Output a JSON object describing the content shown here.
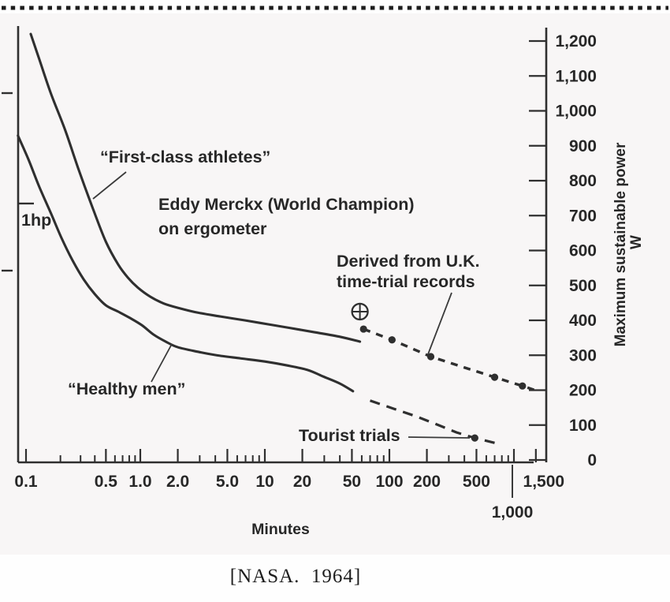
{
  "page": {
    "caption": "[NASA.  1964]"
  },
  "figure": {
    "x_axis_title": "Minutes",
    "y_axis_title": "Maximum sustainable power",
    "y_axis_unit": "W",
    "labels": {
      "first_class": "“First-class athletes”",
      "merckx_1": "Eddy Merckx (World Champion)",
      "merckx_2": "on ergometer",
      "one_hp": "1hp",
      "derived_1": "Derived from U.K.",
      "derived_2": "time-trial records",
      "healthy": "“Healthy men”",
      "tourist": "Tourist trials",
      "x_overflow_label": "1,000"
    }
  },
  "chart_data": {
    "type": "line",
    "title": "",
    "xlabel": "Minutes",
    "ylabel": "Maximum sustainable power (W)",
    "x_scale": "log",
    "xlim": [
      0.08,
      1700
    ],
    "ylim": [
      0,
      1250
    ],
    "grid": false,
    "legend": "none",
    "ink_color": "#2f2f2f",
    "x_major_ticks": [
      {
        "v": 0.1,
        "label": "0.1"
      },
      {
        "v": 0.5,
        "label": "0.5"
      },
      {
        "v": 1,
        "label": "1.0"
      },
      {
        "v": 2,
        "label": "2.0"
      },
      {
        "v": 5,
        "label": "5.0"
      },
      {
        "v": 10,
        "label": "10"
      },
      {
        "v": 20,
        "label": "20"
      },
      {
        "v": 50,
        "label": "50"
      },
      {
        "v": 100,
        "label": "100"
      },
      {
        "v": 200,
        "label": "200"
      },
      {
        "v": 500,
        "label": "500"
      },
      {
        "v": 1000,
        "label": ""
      },
      {
        "v": 1500,
        "label": "1,500",
        "dx": 10
      }
    ],
    "x_minor_ticks": [
      0.2,
      0.3,
      0.4,
      0.6,
      0.7,
      0.8,
      0.9,
      3,
      4,
      6,
      7,
      8,
      9,
      30,
      40,
      60,
      70,
      80,
      90,
      300,
      400,
      600,
      700,
      800,
      900
    ],
    "y_ticks": [
      {
        "v": 0,
        "label": "0"
      },
      {
        "v": 100,
        "label": "100"
      },
      {
        "v": 200,
        "label": "200"
      },
      {
        "v": 300,
        "label": "300"
      },
      {
        "v": 400,
        "label": "400"
      },
      {
        "v": 500,
        "label": "500"
      },
      {
        "v": 600,
        "label": "600"
      },
      {
        "v": 700,
        "label": "700"
      },
      {
        "v": 800,
        "label": "800"
      },
      {
        "v": 900,
        "label": "900"
      },
      {
        "v": 1000,
        "label": "1,000"
      },
      {
        "v": 1100,
        "label": "1,100"
      },
      {
        "v": 1200,
        "label": "1,200"
      }
    ],
    "reference_marks": [
      {
        "label": "1hp",
        "watts": 746
      }
    ],
    "series": [
      {
        "name": "“First-class athletes”",
        "style": "solid",
        "points": [
          [
            0.11,
            1220
          ],
          [
            0.13,
            1150
          ],
          [
            0.165,
            1050
          ],
          [
            0.22,
            945
          ],
          [
            0.29,
            830
          ],
          [
            0.39,
            715
          ],
          [
            0.5,
            625
          ],
          [
            0.64,
            560
          ],
          [
            0.78,
            522
          ],
          [
            0.95,
            494
          ],
          [
            1.2,
            468
          ],
          [
            1.55,
            448
          ],
          [
            2.1,
            434
          ],
          [
            2.9,
            422
          ],
          [
            4.4,
            411
          ],
          [
            6.9,
            400
          ],
          [
            10.5,
            389
          ],
          [
            16,
            378
          ],
          [
            25,
            366
          ],
          [
            40,
            353
          ],
          [
            58,
            339
          ]
        ]
      },
      {
        "name": "“Healthy men”",
        "style": "solid",
        "points": [
          [
            0.085,
            929
          ],
          [
            0.105,
            861
          ],
          [
            0.13,
            784
          ],
          [
            0.165,
            707
          ],
          [
            0.205,
            635
          ],
          [
            0.255,
            572
          ],
          [
            0.32,
            517
          ],
          [
            0.4,
            475
          ],
          [
            0.5,
            443
          ],
          [
            0.64,
            425
          ],
          [
            0.81,
            407
          ],
          [
            1.03,
            386
          ],
          [
            1.28,
            359
          ],
          [
            1.6,
            339
          ],
          [
            2.0,
            323
          ],
          [
            2.9,
            310
          ],
          [
            4.1,
            300
          ],
          [
            6.4,
            291
          ],
          [
            10,
            282
          ],
          [
            15,
            271
          ],
          [
            22,
            258
          ],
          [
            29,
            240
          ],
          [
            40,
            219
          ],
          [
            51,
            197
          ]
        ]
      },
      {
        "name": "Derived from U.K. time-trial records",
        "style": "dashed",
        "dash": "9 8",
        "width": 3.4,
        "points": [
          [
            62,
            375
          ],
          [
            105,
            344
          ],
          [
            215,
            296
          ],
          [
            700,
            237
          ],
          [
            1170,
            212
          ],
          [
            1450,
            201
          ]
        ],
        "markers": [
          [
            62,
            375
          ],
          [
            105,
            344
          ],
          [
            215,
            296
          ],
          [
            700,
            237
          ],
          [
            1170,
            212
          ]
        ]
      },
      {
        "name": "Tourist trials",
        "style": "dashed",
        "dash": "13 9",
        "width": 3.2,
        "points": [
          [
            70,
            170
          ],
          [
            108,
            147
          ],
          [
            167,
            124
          ],
          [
            260,
            97
          ],
          [
            345,
            79
          ],
          [
            485,
            63
          ],
          [
            740,
            47
          ]
        ],
        "markers": [
          [
            485,
            63
          ]
        ]
      },
      {
        "name": "Eddy Merckx (World Champion) on ergometer",
        "style": "circled_plus",
        "points": [
          [
            58,
            425
          ]
        ]
      }
    ]
  }
}
